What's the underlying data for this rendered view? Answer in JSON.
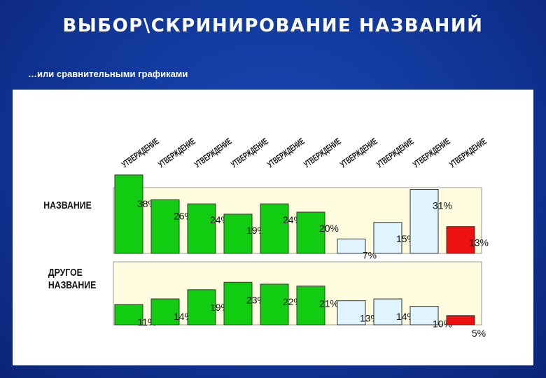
{
  "slide": {
    "title": "ВЫБОР\\СКРИНИРОВАНИЕ НАЗВАНИЙ",
    "subtitle": "…или сравнительными графиками"
  },
  "chart_data": {
    "type": "bar",
    "categories": [
      "УТВЕРЖДЕНИЕ",
      "УТВЕРЖДЕНИЕ",
      "УТВЕРЖДЕНИЕ",
      "УТВЕРЖДЕНИЕ",
      "УТВЕРЖДЕНИЕ",
      "УТВЕРЖДЕНИЕ",
      "УТВЕРЖДЕНИЕ",
      "УТВЕРЖДЕНИЕ",
      "УТВЕРЖДЕНИЕ",
      "УТВЕРЖДЕНИЕ"
    ],
    "series": [
      {
        "name": "НАЗВАНИЕ",
        "values": [
          38,
          26,
          24,
          19,
          24,
          20,
          7,
          15,
          31,
          13
        ],
        "labels": [
          "38%",
          "26%",
          "24%",
          "19%",
          "24%",
          "20%",
          "7%",
          "15%",
          "31%",
          "13%"
        ]
      },
      {
        "name": "ДРУГОЕ НАЗВАНИЕ",
        "values": [
          11,
          14,
          19,
          23,
          22,
          21,
          13,
          14,
          10,
          5
        ],
        "labels": [
          "11%",
          "14%",
          "19%",
          "23%",
          "22%",
          "21%",
          "13%",
          "14%",
          "10%",
          "5%"
        ]
      }
    ],
    "bar_colors": [
      "#11cc11",
      "#11cc11",
      "#11cc11",
      "#11cc11",
      "#11cc11",
      "#11cc11",
      "#dff4ff",
      "#dff4ff",
      "#dff4ff",
      "#ee1111"
    ],
    "ylim": [
      0,
      40
    ],
    "plot_background": "#fffce0",
    "grid": false,
    "legend": "none"
  }
}
